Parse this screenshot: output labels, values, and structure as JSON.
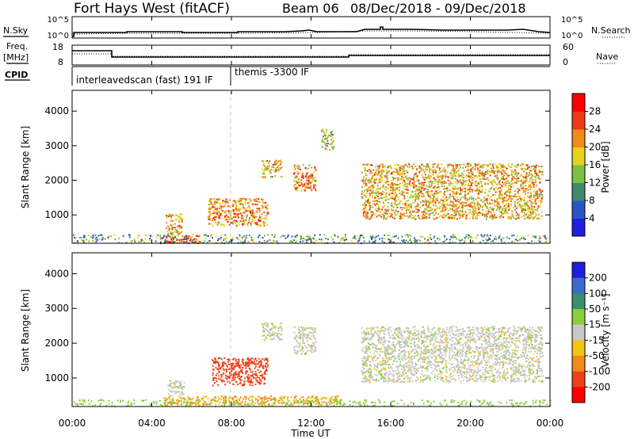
{
  "header": {
    "station": "Fort Hays West (fitACF)",
    "beam": "Beam 06",
    "date_range": "08/Dec/2018 - 09/Dec/2018"
  },
  "noise_panel": {
    "left_label": "N.Sky",
    "right_label": "N.Search",
    "left_ticks": [
      "10^5",
      "10^0"
    ],
    "right_ticks": [
      "10^5",
      "10^0"
    ]
  },
  "freq_panel": {
    "left_label_line1": "Freq.",
    "left_label_line2": "[MHz]",
    "right_label": "Nave",
    "left_ticks": [
      "18",
      "8"
    ],
    "right_ticks": [
      "60",
      "0"
    ]
  },
  "cpid_panel": {
    "label": "CPID",
    "mode1": "interleavedscan (fast) 191 IF",
    "mode2": "themis -3300 IF"
  },
  "time_axis": {
    "label": "Time UT",
    "ticks": [
      "00:00",
      "04:00",
      "08:00",
      "12:00",
      "16:00",
      "20:00",
      "00:00"
    ]
  },
  "range_axis": {
    "label": "Slant Range [km]",
    "ticks": [
      "1000",
      "2000",
      "3000",
      "4000"
    ]
  },
  "power_colorbar": {
    "label": "Power [dB]",
    "ticks": [
      "4",
      "8",
      "12",
      "16",
      "20",
      "24",
      "28"
    ],
    "colors": [
      "#1f1fe0",
      "#2a55c8",
      "#3f8a6a",
      "#7cc046",
      "#e8d21c",
      "#f08a18",
      "#ee3a16",
      "#ff0000"
    ]
  },
  "velocity_colorbar": {
    "label": "Velocity [m s⁻¹]",
    "ticks": [
      "200",
      "100",
      "50",
      "15",
      "-15",
      "-50",
      "-100",
      "-200"
    ],
    "colors": [
      "#1d1de0",
      "#3e6ad0",
      "#3d8f6a",
      "#8ccd3c",
      "#c8c8c8",
      "#f3c316",
      "#f08a18",
      "#ee4018",
      "#ff0000"
    ]
  },
  "chart_data": {
    "type": "heatmap",
    "title": "Fort Hays West (fitACF)",
    "xlabel": "Time UT",
    "ylabel": "Slant Range [km]",
    "xlim_hours": [
      0,
      24
    ],
    "ylim_km": [
      180,
      4600
    ],
    "power_regions": [
      {
        "t0": 4.6,
        "t1": 6.5,
        "r0": 200,
        "r1": 420,
        "power_db": 28
      },
      {
        "t0": 4.7,
        "t1": 5.5,
        "r0": 420,
        "r1": 1050,
        "power_db": 20
      },
      {
        "t0": 6.8,
        "t1": 9.8,
        "r0": 700,
        "r1": 1500,
        "power_db": 22
      },
      {
        "t0": 9.5,
        "t1": 10.5,
        "r0": 2100,
        "r1": 2600,
        "power_db": 18
      },
      {
        "t0": 11.1,
        "t1": 12.2,
        "r0": 1700,
        "r1": 2500,
        "power_db": 22
      },
      {
        "t0": 12.5,
        "t1": 13.1,
        "r0": 2900,
        "r1": 3500,
        "power_db": 14
      },
      {
        "t0": 14.5,
        "t1": 23.6,
        "r0": 900,
        "r1": 2500,
        "power_db": 20
      }
    ],
    "velocity_regions": [
      {
        "t0": 4.7,
        "t1": 5.6,
        "r0": 500,
        "r1": 950,
        "velocity_ms": 0
      },
      {
        "t0": 4.6,
        "t1": 13.5,
        "r0": 250,
        "r1": 500,
        "velocity_ms": -50
      },
      {
        "t0": 7.0,
        "t1": 9.8,
        "r0": 800,
        "r1": 1600,
        "velocity_ms": -150
      },
      {
        "t0": 9.5,
        "t1": 10.5,
        "r0": 2100,
        "r1": 2600,
        "velocity_ms": 0
      },
      {
        "t0": 11.1,
        "t1": 12.2,
        "r0": 1700,
        "r1": 2500,
        "velocity_ms": 0
      },
      {
        "t0": 14.5,
        "t1": 23.6,
        "r0": 900,
        "r1": 2500,
        "velocity_ms": 0
      }
    ],
    "frequency_mhz": [
      {
        "t0": 0,
        "t1": 1.9,
        "value": 15.5
      },
      {
        "t0": 1.9,
        "t1": 14.3,
        "value": 9.6
      },
      {
        "t0": 14.3,
        "t1": 24,
        "value": 10.2
      }
    ],
    "cpid_change_hour": 7.9
  }
}
